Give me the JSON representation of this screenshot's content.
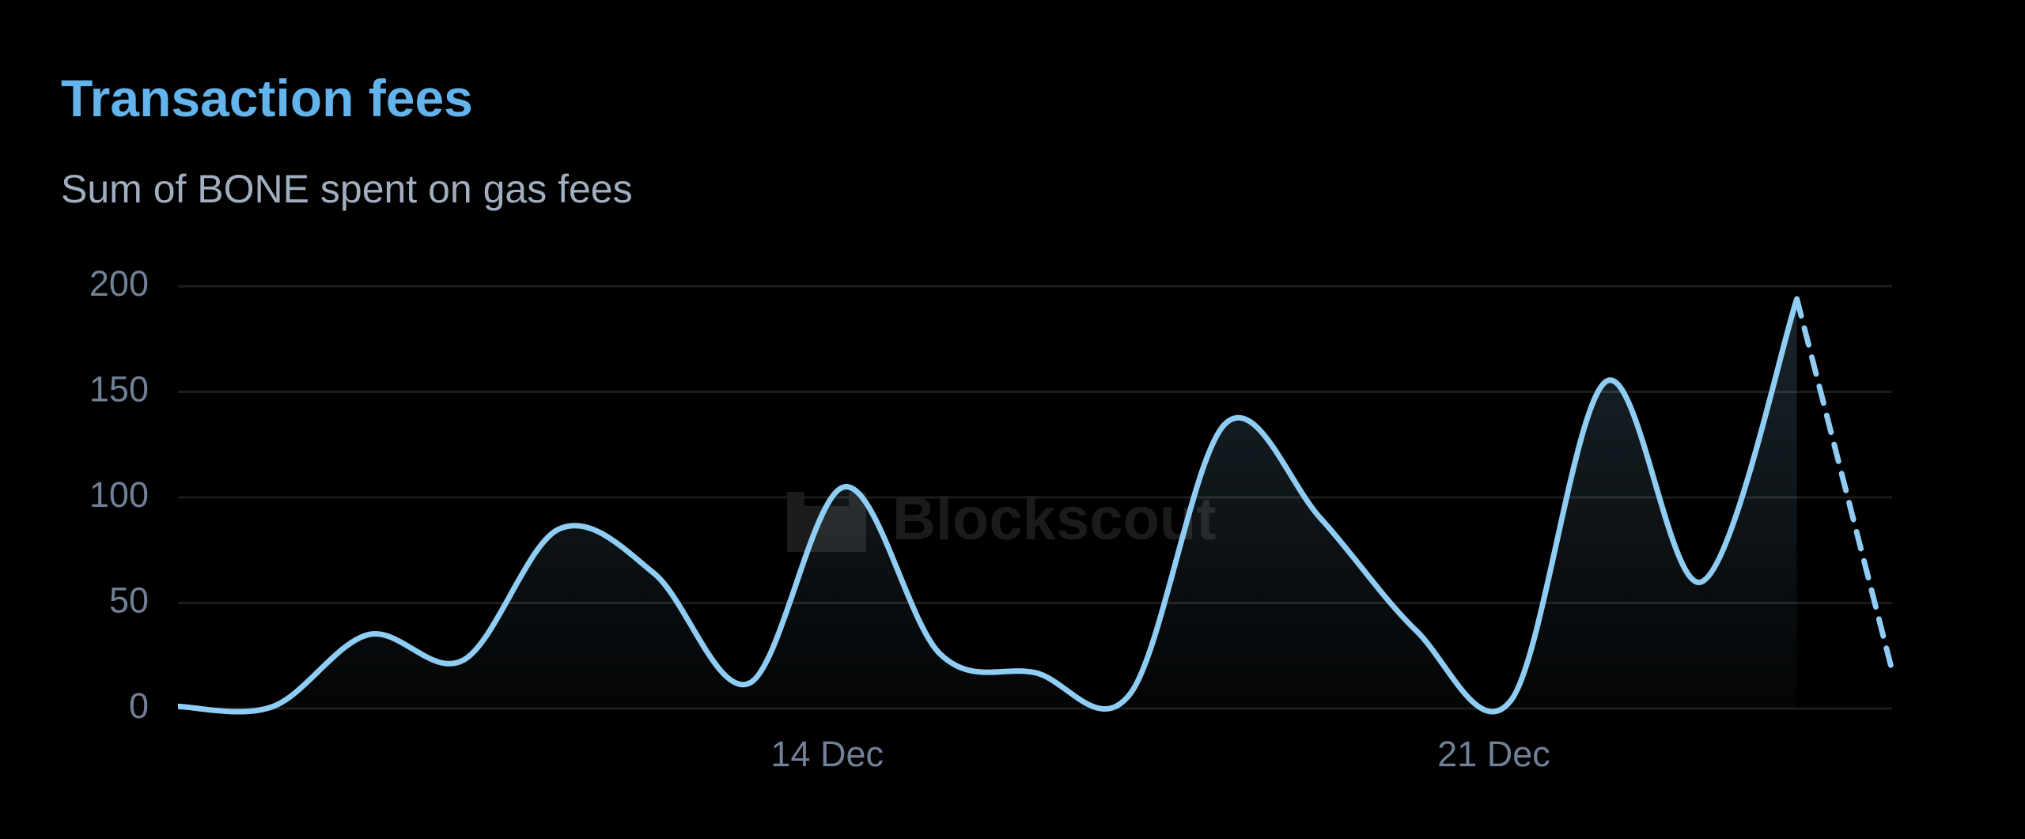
{
  "title": "Transaction fees",
  "subtitle": "Sum of BONE spent on gas fees",
  "watermark": "Blockscout",
  "chart_data": {
    "type": "area",
    "categories": [
      null,
      null,
      null,
      null,
      null,
      null,
      null,
      "14 Dec",
      null,
      null,
      null,
      null,
      null,
      null,
      "21 Dec",
      null,
      null,
      null,
      null
    ],
    "series": [
      {
        "color": "#90cdf4",
        "values": [
          1,
          1,
          35,
          23,
          85,
          64,
          12,
          105,
          26,
          17,
          7,
          135,
          90,
          37,
          4,
          155,
          60,
          194,
          18
        ]
      }
    ],
    "incomplete_last_point": true,
    "ylim": [
      0,
      200
    ],
    "yticks": [
      0,
      50,
      100,
      150,
      200
    ],
    "grid": true
  }
}
